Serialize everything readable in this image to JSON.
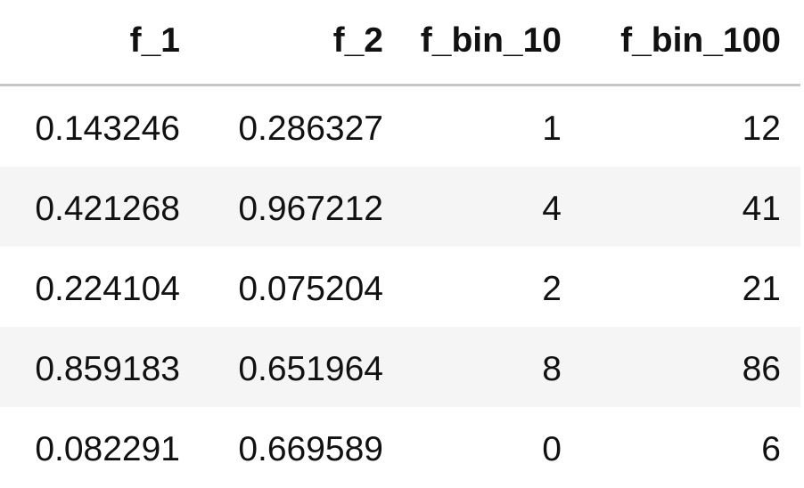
{
  "table": {
    "columns": [
      "f_1",
      "f_2",
      "f_bin_10",
      "f_bin_100"
    ],
    "rows": [
      [
        "0.143246",
        "0.286327",
        "1",
        "12"
      ],
      [
        "0.421268",
        "0.967212",
        "4",
        "41"
      ],
      [
        "0.224104",
        "0.075204",
        "2",
        "21"
      ],
      [
        "0.859183",
        "0.651964",
        "8",
        "86"
      ],
      [
        "0.082291",
        "0.669589",
        "0",
        "6"
      ]
    ]
  }
}
